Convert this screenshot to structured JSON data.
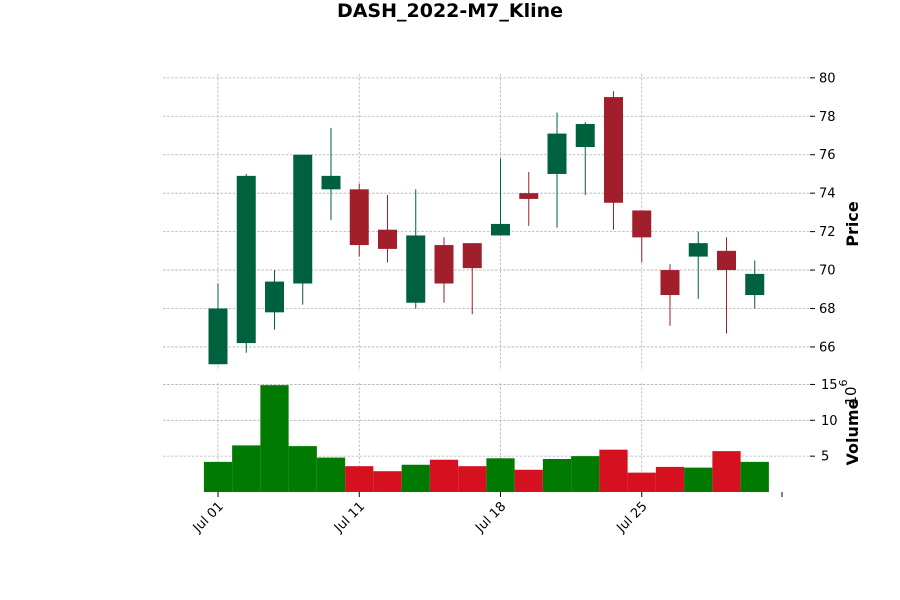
{
  "chart_data": {
    "type": "candlestick",
    "title": "DASH_2022-M7_Kline",
    "price_panel": {
      "ylabel": "Price",
      "ylim": [
        64.8,
        80.2
      ],
      "yticks": [
        66,
        68,
        70,
        72,
        74,
        76,
        78,
        80
      ],
      "grid": true
    },
    "volume_panel": {
      "ylabel": "Volume",
      "exponent_label": "10",
      "exponent_power": "6",
      "ylim": [
        0,
        15.2
      ],
      "yticks": [
        5,
        10,
        15
      ],
      "grid": true
    },
    "x_ticks": [
      {
        "label": "Jul 01",
        "index": 0
      },
      {
        "label": "Jul 11",
        "index": 5
      },
      {
        "label": "Jul 18",
        "index": 10
      },
      {
        "label": "Jul 25",
        "index": 15
      }
    ],
    "colors": {
      "up_candle": "#00613f",
      "down_candle": "#a11f2a",
      "up_volume": "#007a00",
      "down_volume": "#d5101f",
      "grid": "#b0b0b0"
    },
    "candles": [
      {
        "open": 65.1,
        "high": 69.3,
        "low": 65.1,
        "close": 68.0,
        "volume": 4.2
      },
      {
        "open": 66.2,
        "high": 75.0,
        "low": 65.7,
        "close": 74.9,
        "volume": 6.5
      },
      {
        "open": 67.8,
        "high": 70.0,
        "low": 66.9,
        "close": 69.4,
        "volume": 14.9
      },
      {
        "open": 69.3,
        "high": 76.0,
        "low": 68.2,
        "close": 76.0,
        "volume": 6.4
      },
      {
        "open": 74.2,
        "high": 77.4,
        "low": 72.6,
        "close": 74.9,
        "volume": 4.8
      },
      {
        "open": 74.2,
        "high": 74.5,
        "low": 70.7,
        "close": 71.3,
        "volume": 3.6
      },
      {
        "open": 72.1,
        "high": 73.9,
        "low": 70.4,
        "close": 71.1,
        "volume": 2.9
      },
      {
        "open": 68.3,
        "high": 74.2,
        "low": 68.0,
        "close": 71.8,
        "volume": 3.8
      },
      {
        "open": 71.3,
        "high": 71.7,
        "low": 68.3,
        "close": 69.3,
        "volume": 4.5
      },
      {
        "open": 71.4,
        "high": 71.4,
        "low": 67.7,
        "close": 70.1,
        "volume": 3.6
      },
      {
        "open": 71.8,
        "high": 75.8,
        "low": 71.8,
        "close": 72.4,
        "volume": 4.7
      },
      {
        "open": 74.0,
        "high": 75.1,
        "low": 72.3,
        "close": 73.7,
        "volume": 3.1
      },
      {
        "open": 75.0,
        "high": 78.2,
        "low": 72.2,
        "close": 77.1,
        "volume": 4.6
      },
      {
        "open": 76.4,
        "high": 77.7,
        "low": 73.9,
        "close": 77.6,
        "volume": 5.0
      },
      {
        "open": 79.0,
        "high": 79.3,
        "low": 72.1,
        "close": 73.5,
        "volume": 5.9
      },
      {
        "open": 73.1,
        "high": 73.1,
        "low": 70.4,
        "close": 71.7,
        "volume": 2.7
      },
      {
        "open": 70.0,
        "high": 70.3,
        "low": 67.1,
        "close": 68.7,
        "volume": 3.5
      },
      {
        "open": 70.7,
        "high": 72.0,
        "low": 68.5,
        "close": 71.4,
        "volume": 3.4
      },
      {
        "open": 71.0,
        "high": 71.7,
        "low": 66.7,
        "close": 70.0,
        "volume": 5.7
      },
      {
        "open": 68.7,
        "high": 70.5,
        "low": 68.0,
        "close": 69.8,
        "volume": 4.2
      }
    ]
  }
}
